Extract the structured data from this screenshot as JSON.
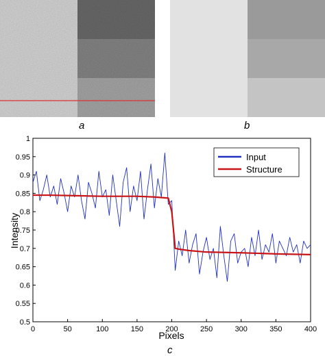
{
  "panels": [
    {
      "id": "a",
      "caption": "a"
    },
    {
      "id": "b",
      "caption": "b"
    }
  ],
  "chart_caption": "c",
  "colors": {
    "input": "#1f2fbf",
    "structure": "#c81414",
    "scanline": "#e03030"
  },
  "chart_data": {
    "type": "line",
    "title": "",
    "xlabel": "Pixels",
    "ylabel": "Intensity",
    "xlim": [
      0,
      400
    ],
    "ylim": [
      0.5,
      1
    ],
    "xticks": [
      0,
      50,
      100,
      150,
      200,
      250,
      300,
      350,
      400
    ],
    "yticks": [
      0.5,
      0.55,
      0.6,
      0.65,
      0.7,
      0.75,
      0.8,
      0.85,
      0.9,
      0.95,
      1
    ],
    "legend": {
      "position": "top-right"
    },
    "series": [
      {
        "name": "Input",
        "color": "#1f2fbf",
        "x": [
          0,
          5,
          10,
          15,
          20,
          25,
          30,
          35,
          40,
          45,
          50,
          55,
          60,
          65,
          70,
          75,
          80,
          85,
          90,
          95,
          100,
          105,
          110,
          115,
          120,
          125,
          130,
          135,
          140,
          145,
          150,
          155,
          160,
          165,
          170,
          175,
          180,
          185,
          190,
          195,
          200,
          205,
          210,
          215,
          220,
          225,
          230,
          235,
          240,
          245,
          250,
          255,
          260,
          265,
          270,
          275,
          280,
          285,
          290,
          295,
          300,
          305,
          310,
          315,
          320,
          325,
          330,
          335,
          340,
          345,
          350,
          355,
          360,
          365,
          370,
          375,
          380,
          385,
          390,
          395,
          400
        ],
        "values": [
          0.88,
          0.91,
          0.83,
          0.86,
          0.9,
          0.84,
          0.87,
          0.82,
          0.89,
          0.85,
          0.8,
          0.87,
          0.84,
          0.9,
          0.83,
          0.78,
          0.88,
          0.85,
          0.81,
          0.91,
          0.84,
          0.86,
          0.79,
          0.9,
          0.83,
          0.76,
          0.88,
          0.92,
          0.8,
          0.87,
          0.83,
          0.91,
          0.78,
          0.86,
          0.93,
          0.81,
          0.89,
          0.84,
          0.96,
          0.82,
          0.83,
          0.64,
          0.72,
          0.68,
          0.75,
          0.66,
          0.71,
          0.74,
          0.63,
          0.69,
          0.73,
          0.67,
          0.7,
          0.62,
          0.76,
          0.68,
          0.61,
          0.72,
          0.74,
          0.66,
          0.69,
          0.7,
          0.65,
          0.73,
          0.68,
          0.75,
          0.67,
          0.71,
          0.69,
          0.74,
          0.66,
          0.72,
          0.7,
          0.68,
          0.73,
          0.69,
          0.71,
          0.66,
          0.72,
          0.7,
          0.71
        ]
      },
      {
        "name": "Structure",
        "color": "#c81414",
        "x": [
          0,
          25,
          50,
          75,
          100,
          125,
          150,
          175,
          195,
          200,
          205,
          210,
          225,
          250,
          300,
          350,
          400
        ],
        "values": [
          0.845,
          0.845,
          0.844,
          0.843,
          0.842,
          0.842,
          0.842,
          0.84,
          0.837,
          0.8,
          0.7,
          0.698,
          0.694,
          0.69,
          0.688,
          0.685,
          0.683
        ]
      }
    ]
  }
}
